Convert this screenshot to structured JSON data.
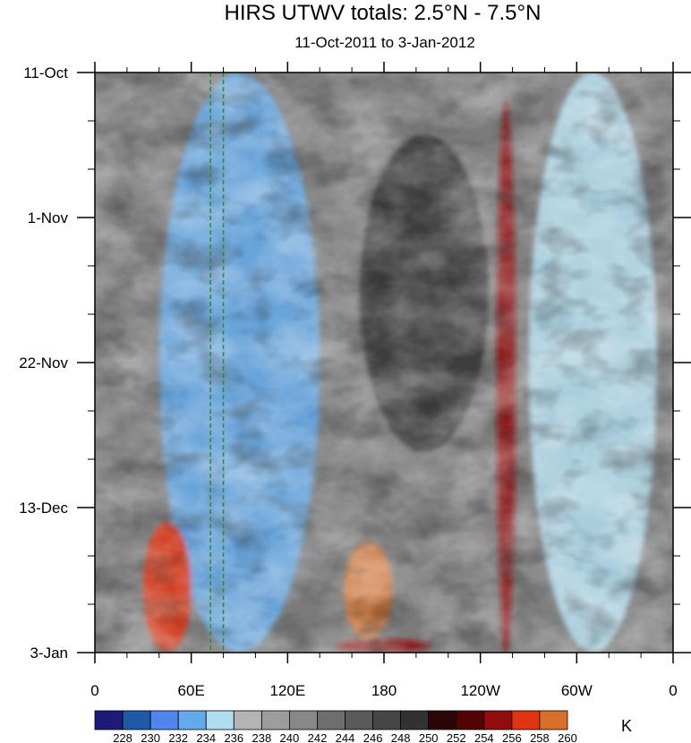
{
  "chart_data": {
    "type": "heatmap",
    "title": "HIRS UTWV totals: 2.5°N - 7.5°N",
    "subtitle": "11-Oct-2011 to 3-Jan-2012",
    "xlabel": "",
    "ylabel": "",
    "x_ticks": [
      "0",
      "60E",
      "120E",
      "180",
      "120W",
      "60W",
      "0"
    ],
    "x_tick_values": [
      0,
      60,
      120,
      180,
      240,
      300,
      360
    ],
    "xlim": [
      0,
      360
    ],
    "y_ticks": [
      "11-Oct",
      "1-Nov",
      "22-Nov",
      "13-Dec",
      "3-Jan"
    ],
    "y_tick_values": [
      "2011-10-11",
      "2011-11-01",
      "2011-11-22",
      "2011-12-13",
      "2012-01-03"
    ],
    "ylim": [
      "2012-01-03",
      "2011-10-11"
    ],
    "reference_lines": [
      {
        "orientation": "vertical",
        "x": 72,
        "style": "dashed",
        "color": "#2e8b2e"
      },
      {
        "orientation": "vertical",
        "x": 80,
        "style": "dashed",
        "color": "#2e8b2e"
      }
    ],
    "colorbar": {
      "unit": "K",
      "levels": [
        228,
        230,
        232,
        234,
        236,
        238,
        240,
        242,
        244,
        246,
        248,
        250,
        252,
        254,
        256,
        258,
        260
      ],
      "colors": [
        "#1c1a7a",
        "#1f5aa6",
        "#4f86ee",
        "#64aaea",
        "#b0dcef",
        "#b4b4b4",
        "#9c9c9c",
        "#888888",
        "#6e6e6e",
        "#5a5a5a",
        "#464646",
        "#323232",
        "#2a0606",
        "#520404",
        "#920c0c",
        "#e03410",
        "#d8702a"
      ]
    },
    "features": [
      {
        "name": "moist band",
        "x_range": [
          40,
          140
        ],
        "date_range": [
          "2011-10-11",
          "2012-01-03"
        ],
        "value": 234
      },
      {
        "name": "moist band",
        "x_range": [
          270,
          350
        ],
        "date_range": [
          "2011-10-11",
          "2012-01-03"
        ],
        "value": 236
      },
      {
        "name": "dry band",
        "x_range": [
          165,
          245
        ],
        "date_range": [
          "2011-10-20",
          "2011-12-05"
        ],
        "value": 250
      },
      {
        "name": "dry band",
        "x_range": [
          250,
          262
        ],
        "date_range": [
          "2011-10-15",
          "2012-01-03"
        ],
        "value": 256
      },
      {
        "name": "dry patch",
        "x_range": [
          155,
          185
        ],
        "date_range": [
          "2011-12-18",
          "2012-01-01"
        ],
        "value": 260
      },
      {
        "name": "dry patch",
        "x_range": [
          30,
          60
        ],
        "date_range": [
          "2011-12-15",
          "2012-01-03"
        ],
        "value": 258
      },
      {
        "name": "dry patch",
        "x_range": [
          150,
          210
        ],
        "date_range": [
          "2012-01-01",
          "2012-01-03"
        ],
        "value": 256
      }
    ]
  }
}
